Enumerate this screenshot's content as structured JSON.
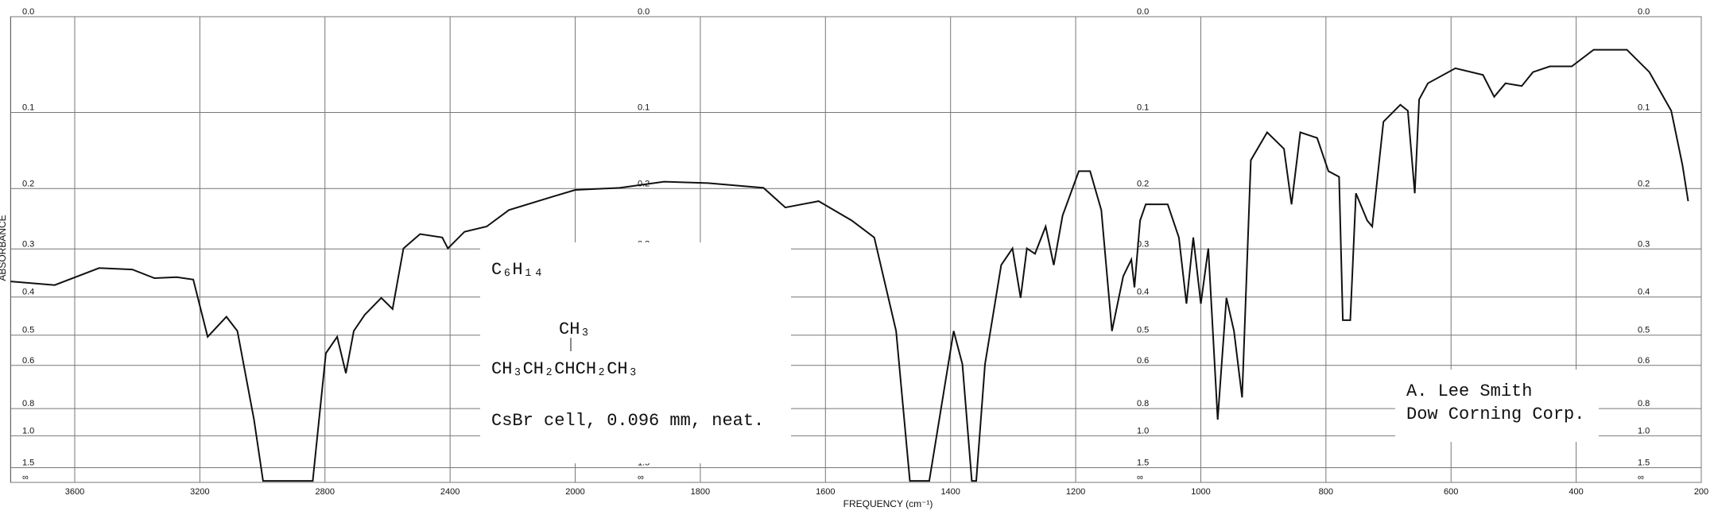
{
  "chart_data": {
    "type": "line",
    "x_label": "FREQUENCY (cm⁻¹)",
    "y_label": "ABSORBANCE",
    "yscale": "absorbance",
    "grid": true,
    "color": "#111111",
    "xlim": [
      3805,
      200
    ],
    "xticks": [
      3600,
      3200,
      2800,
      2400,
      2000,
      1800,
      1600,
      1400,
      1200,
      1000,
      800,
      600,
      400,
      200
    ],
    "ylim": [
      0,
      null
    ],
    "yticks": [
      {
        "value": 0,
        "label": "0.0"
      },
      0.1,
      0.2,
      0.3,
      0.4,
      0.5,
      0.6,
      0.8,
      {
        "value": 1,
        "label": "1.0"
      },
      1.5,
      {
        "value": null,
        "label": "∞"
      }
    ],
    "x": [
      3805,
      3664,
      3522,
      3416,
      3345,
      3274,
      3221,
      3175,
      3115,
      3080,
      3027,
      2998,
      2839,
      2797,
      2761,
      2733,
      2708,
      2673,
      2620,
      2584,
      2549,
      2496,
      2425,
      2407,
      2354,
      2283,
      2212,
      2071,
      2000,
      1929,
      1858,
      1788,
      1699,
      1664,
      1611,
      1558,
      1522,
      1487,
      1465,
      1434,
      1395,
      1381,
      1366,
      1359,
      1345,
      1319,
      1301,
      1288,
      1278,
      1265,
      1248,
      1235,
      1221,
      1195,
      1177,
      1159,
      1142,
      1124,
      1111,
      1106,
      1097,
      1088,
      1053,
      1035,
      1023,
      1012,
      1000,
      988,
      973,
      959,
      947,
      934,
      920,
      894,
      867,
      855,
      841,
      814,
      796,
      779,
      773,
      761,
      752,
      734,
      726,
      708,
      681,
      669,
      658,
      651,
      637,
      593,
      549,
      531,
      513,
      487,
      469,
      442,
      407,
      372,
      319,
      283,
      248,
      230,
      221
    ],
    "values": [
      0.365,
      0.373,
      0.337,
      0.34,
      0.358,
      0.356,
      0.361,
      0.505,
      0.449,
      0.488,
      0.87,
      2.5,
      2.5,
      0.557,
      0.505,
      0.63,
      0.488,
      0.444,
      0.402,
      0.429,
      0.299,
      0.273,
      0.279,
      0.299,
      0.269,
      0.26,
      0.233,
      0.212,
      0.202,
      0.199,
      0.19,
      0.192,
      0.199,
      0.229,
      0.219,
      0.25,
      0.279,
      0.488,
      2.5,
      2.5,
      0.488,
      0.596,
      2.5,
      2.5,
      0.596,
      0.331,
      0.299,
      0.402,
      0.299,
      0.309,
      0.26,
      0.331,
      0.242,
      0.175,
      0.175,
      0.233,
      0.488,
      0.354,
      0.32,
      0.378,
      0.25,
      0.224,
      0.224,
      0.279,
      0.416,
      0.279,
      0.416,
      0.299,
      0.87,
      0.402,
      0.488,
      0.739,
      0.16,
      0.124,
      0.145,
      0.224,
      0.124,
      0.131,
      0.175,
      0.183,
      0.458,
      0.458,
      0.207,
      0.25,
      0.26,
      0.111,
      0.091,
      0.098,
      0.207,
      0.085,
      0.067,
      0.051,
      0.058,
      0.082,
      0.067,
      0.07,
      0.055,
      0.049,
      0.049,
      0.032,
      0.032,
      0.055,
      0.098,
      0.167,
      0.219
    ],
    "formula": "C₆H₁₄",
    "structure_branch": "CH₃",
    "structure": "CH₃CH₂CHCH₂CH₃",
    "sample": "CsBr cell, 0.096 mm, neat.",
    "credit": [
      "A. Lee Smith",
      "Dow Corning Corp."
    ]
  }
}
